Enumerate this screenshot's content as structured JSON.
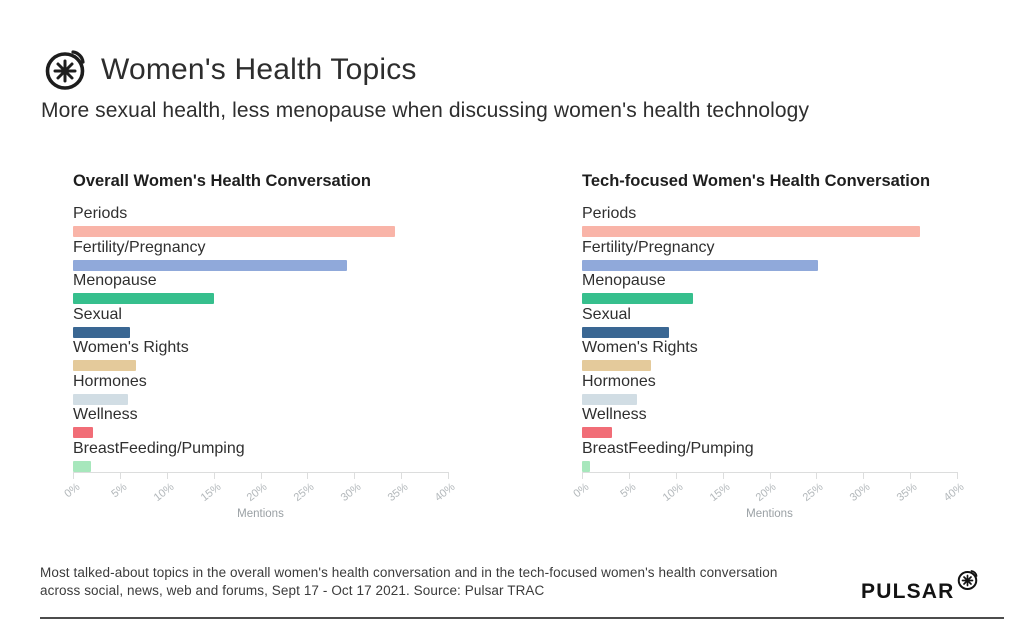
{
  "header": {
    "title": "Women's Health Topics",
    "subtitle": "More sexual health, less menopause when discussing women's health technology",
    "logo_icon": "pulsar-asterisk-icon"
  },
  "chart_data": {
    "type": "bar",
    "orientation": "horizontal",
    "categories": [
      "Periods",
      "Fertility/Pregnancy",
      "Menopause",
      "Sexual",
      "Women's Rights",
      "Hormones",
      "Wellness",
      "BreastFeeding/Pumping"
    ],
    "series": [
      {
        "name": "Overall Women's Health Conversation",
        "values": [
          34.3,
          29.2,
          15.0,
          6.1,
          6.7,
          5.9,
          2.1,
          1.9
        ]
      },
      {
        "name": "Tech-focused Women's Health Conversation",
        "values": [
          36.0,
          25.2,
          11.8,
          9.3,
          7.4,
          5.9,
          3.2,
          0.8
        ]
      }
    ],
    "bar_colors": [
      "#F9B4A8",
      "#90A9DA",
      "#36BF8D",
      "#3A6793",
      "#E4CA9B",
      "#D1DDE4",
      "#F16D77",
      "#A7E7BC"
    ],
    "xlabel": "Mentions",
    "x_ticks": [
      "0%",
      "5%",
      "10%",
      "15%",
      "20%",
      "25%",
      "30%",
      "35%",
      "40%"
    ],
    "xlim": [
      0,
      40
    ],
    "grid": false,
    "legend": false
  },
  "footer": {
    "caption_lines": [
      "Most talked-about topics in the overall women's health conversation and in the tech-focused women's health conversation",
      "across social, news, web and forums, Sept 17 - Oct 17 2021. Source: Pulsar TRAC"
    ],
    "brand": "PULSAR",
    "brand_icon": "pulsar-asterisk-icon"
  },
  "colors": {
    "title_text": "#2d2d2d",
    "label_text": "#2f2f2f",
    "axis_text": "#b3b8bb",
    "caption_text": "#3b3b3b",
    "axis_line": "#dcdddd",
    "rule": "#4c4c4c"
  }
}
